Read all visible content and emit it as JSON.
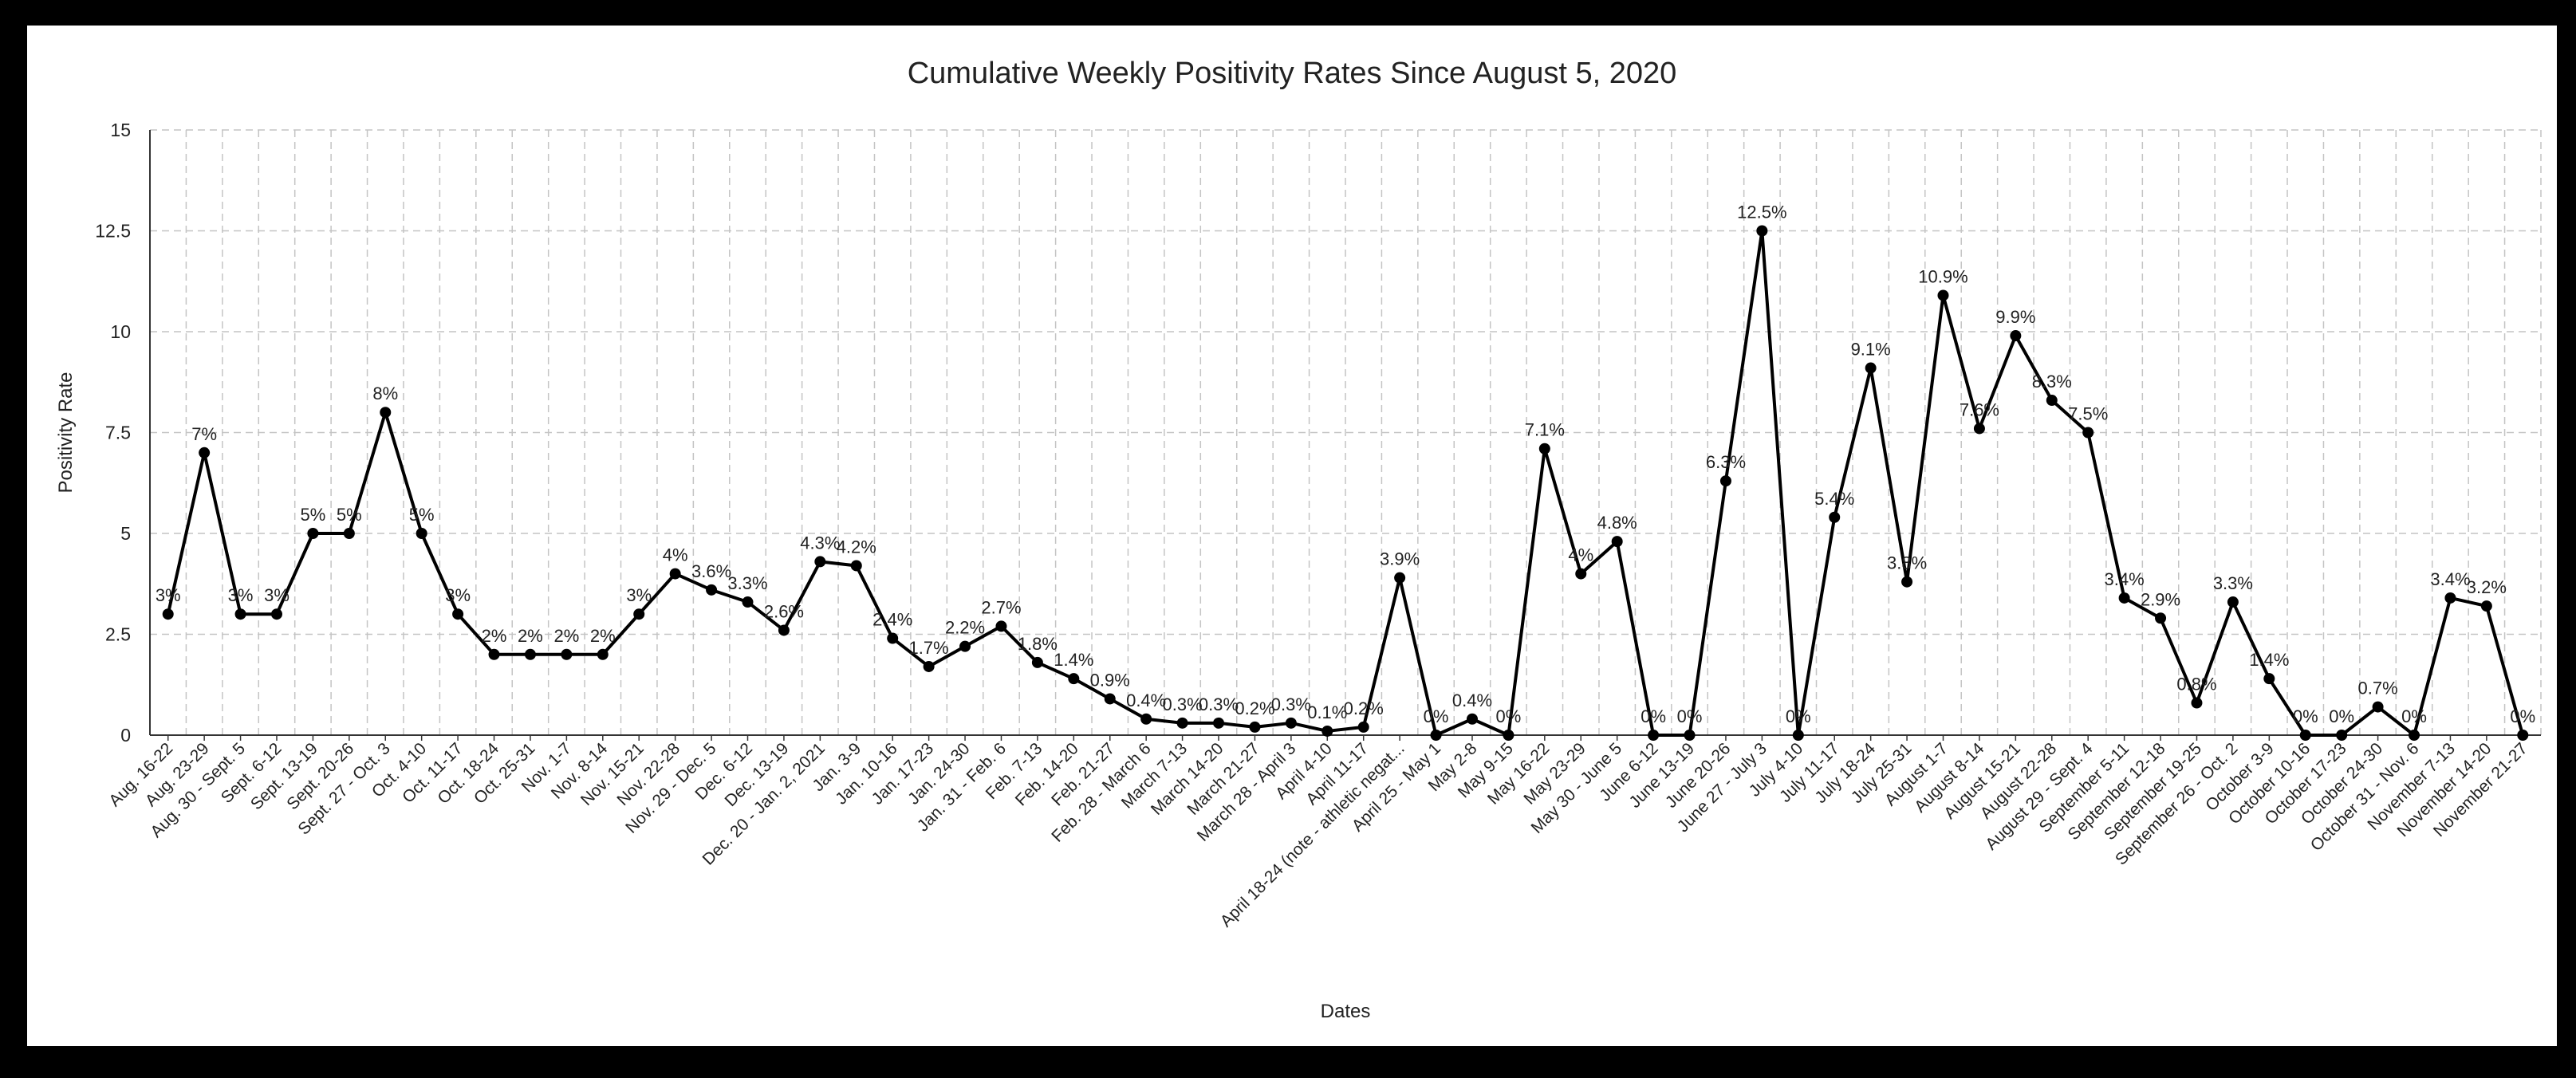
{
  "chart_data": {
    "type": "line",
    "title": "Cumulative Weekly Positivity Rates Since August 5, 2020",
    "xlabel": "Dates",
    "ylabel": "Positivity Rate",
    "ylim": [
      0,
      15
    ],
    "yticks": [
      0,
      2.5,
      5,
      7.5,
      10,
      12.5,
      15
    ],
    "ytick_labels": [
      "0",
      "2.5",
      "5",
      "7.5",
      "10",
      "12.5",
      "15"
    ],
    "grid": true,
    "legend": "none",
    "line_color": "#000000",
    "categories": [
      "Aug. 16-22",
      "Aug. 23-29",
      "Aug. 30 - Sept. 5",
      "Sept. 6-12",
      "Sept. 13-19",
      "Sept. 20-26",
      "Sept. 27 - Oct. 3",
      "Oct. 4-10",
      "Oct. 11-17",
      "Oct. 18-24",
      "Oct. 25-31",
      "Nov. 1-7",
      "Nov. 8-14",
      "Nov. 15-21",
      "Nov. 22-28",
      "Nov. 29 - Dec. 5",
      "Dec. 6-12",
      "Dec. 13-19",
      "Dec. 20 - Jan. 2, 2021",
      "Jan. 3-9",
      "Jan. 10-16",
      "Jan. 17-23",
      "Jan. 24-30",
      "Jan. 31 - Feb. 6",
      "Feb. 7-13",
      "Feb. 14-20",
      "Feb. 21-27",
      "Feb. 28 - March 6",
      "March 7-13",
      "March 14-20",
      "March 21-27",
      "March 28 - April 3",
      "April 4-10",
      "April 11-17",
      "April 18-24 (note - athletic negat...",
      "April 25 - May 1",
      "May 2-8",
      "May 9-15",
      "May 16-22",
      "May 23-29",
      "May 30 - June 5",
      "June 6-12",
      "June 13-19",
      "June 20-26",
      "June 27 - July 3",
      "July 4-10",
      "July 11-17",
      "July 18-24",
      "July 25-31",
      "August 1-7",
      "August 8-14",
      "August 15-21",
      "August 22-28",
      "August 29 - Sept. 4",
      "September 5-11",
      "September 12-18",
      "September 19-25",
      "September 26 - Oct. 2",
      "October 3-9",
      "October 10-16",
      "October 17-23",
      "October 24-30",
      "October 31 - Nov. 6",
      "November 7-13",
      "November 14-20",
      "November 21-27"
    ],
    "values": [
      3,
      7,
      3,
      3,
      5,
      5,
      8,
      5,
      3,
      2,
      2,
      2,
      2,
      3,
      4,
      3.6,
      3.3,
      2.6,
      4.3,
      4.2,
      2.4,
      1.7,
      2.2,
      2.7,
      1.8,
      1.4,
      0.9,
      0.4,
      0.3,
      0.3,
      0.2,
      0.3,
      0.1,
      0.2,
      3.9,
      0,
      0.4,
      0,
      7.1,
      4,
      4.8,
      0,
      0,
      6.3,
      12.5,
      0,
      5.4,
      9.1,
      3.8,
      10.9,
      7.6,
      9.9,
      8.3,
      7.5,
      3.4,
      2.9,
      0.8,
      3.3,
      1.4,
      0,
      0,
      0.7,
      0,
      3.4,
      3.2,
      0
    ],
    "data_labels": [
      "3%",
      "7%",
      "3%",
      "3%",
      "5%",
      "5%",
      "8%",
      "5%",
      "3%",
      "2%",
      "2%",
      "2%",
      "2%",
      "3%",
      "4%",
      "3.6%",
      "3.3%",
      "2.6%",
      "4.3%",
      "4.2%",
      "2.4%",
      "1.7%",
      "2.2%",
      "2.7%",
      "1.8%",
      "1.4%",
      "0.9%",
      "0.4%",
      "0.3%",
      "0.3%",
      "0.2%",
      "0.3%",
      "0.1%",
      "0.2%",
      "3.9%",
      "0%",
      "0.4%",
      "0%",
      "7.1%",
      "4%",
      "4.8%",
      "0%",
      "0%",
      "6.3%",
      "12.5%",
      "0%",
      "5.4%",
      "9.1%",
      "3.8%",
      "10.9%",
      "7.6%",
      "9.9%",
      "8.3%",
      "7.5%",
      "3.4%",
      "2.9%",
      "0.8%",
      "3.3%",
      "1.4%",
      "0%",
      "0%",
      "0.7%",
      "0%",
      "3.4%",
      "3.2%",
      "0%"
    ]
  }
}
